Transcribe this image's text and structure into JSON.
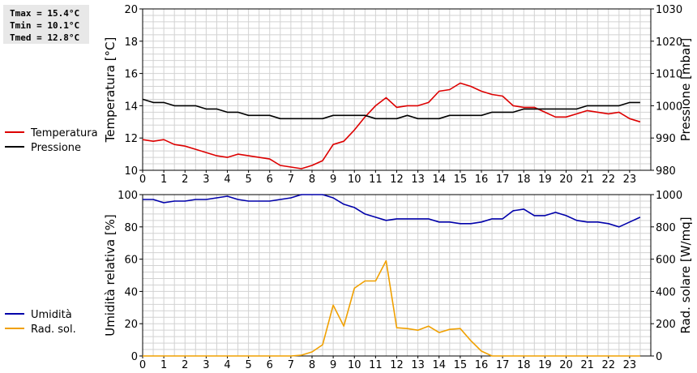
{
  "stats": {
    "tmax": "Tmax = 15.4°C",
    "tmin": "Tmin = 10.1°C",
    "tmed": "Tmed = 12.8°C"
  },
  "colors": {
    "temperature": "#dd0000",
    "pressure": "#000000",
    "humidity": "#0000aa",
    "solar": "#f0a000",
    "grid": "#d2d2d2"
  },
  "chart_data": [
    {
      "type": "line",
      "ylabel": "Temperatura [°C]",
      "y2label": "Pressione [mbar]",
      "xlim": [
        0,
        24
      ],
      "ylim": [
        10,
        20
      ],
      "y2lim": [
        980,
        1030
      ],
      "xticks": [
        "0",
        "1",
        "2",
        "3",
        "4",
        "5",
        "6",
        "7",
        "8",
        "9",
        "10",
        "11",
        "12",
        "13",
        "14",
        "15",
        "16",
        "17",
        "18",
        "19",
        "20",
        "21",
        "22",
        "23"
      ],
      "yticks": [
        "10",
        "12",
        "14",
        "16",
        "18",
        "20"
      ],
      "y2ticks": [
        "980",
        "990",
        "1000",
        "1010",
        "1020",
        "1030"
      ],
      "grid": true,
      "legend_position": "left",
      "series": [
        {
          "name": "Temperatura",
          "axis": "left",
          "x": [
            0,
            0.5,
            1,
            1.5,
            2,
            2.5,
            3,
            3.5,
            4,
            4.5,
            5,
            5.5,
            6,
            6.5,
            7,
            7.5,
            8,
            8.5,
            9,
            9.5,
            10,
            10.5,
            11,
            11.5,
            12,
            12.5,
            13,
            13.5,
            14,
            14.5,
            15,
            15.5,
            16,
            16.5,
            17,
            17.5,
            18,
            18.5,
            19,
            19.5,
            20,
            20.5,
            21,
            21.5,
            22,
            22.5,
            23,
            23.5
          ],
          "y": [
            11.9,
            11.8,
            11.9,
            11.6,
            11.5,
            11.3,
            11.1,
            10.9,
            10.8,
            11.0,
            10.9,
            10.8,
            10.7,
            10.3,
            10.2,
            10.1,
            10.3,
            10.6,
            11.6,
            11.8,
            12.5,
            13.3,
            14.0,
            14.5,
            13.9,
            14.0,
            14.0,
            14.2,
            14.9,
            15.0,
            15.4,
            15.2,
            14.9,
            14.7,
            14.6,
            14.0,
            13.9,
            13.9,
            13.6,
            13.3,
            13.3,
            13.5,
            13.7,
            13.6,
            13.5,
            13.6,
            13.2,
            13.0
          ]
        },
        {
          "name": "Pressione",
          "axis": "right",
          "x": [
            0,
            0.5,
            1,
            1.5,
            2,
            2.5,
            3,
            3.5,
            4,
            4.5,
            5,
            5.5,
            6,
            6.5,
            7,
            7.5,
            8,
            8.5,
            9,
            9.5,
            10,
            10.5,
            11,
            11.5,
            12,
            12.5,
            13,
            13.5,
            14,
            14.5,
            15,
            15.5,
            16,
            16.5,
            17,
            17.5,
            18,
            18.5,
            19,
            19.5,
            20,
            20.5,
            21,
            21.5,
            22,
            22.5,
            23,
            23.5
          ],
          "y": [
            1002,
            1001,
            1001,
            1000,
            1000,
            1000,
            999,
            999,
            998,
            998,
            997,
            997,
            997,
            996,
            996,
            996,
            996,
            996,
            997,
            997,
            997,
            997,
            996,
            996,
            996,
            997,
            996,
            996,
            996,
            997,
            997,
            997,
            997,
            998,
            998,
            998,
            999,
            999,
            999,
            999,
            999,
            999,
            1000,
            1000,
            1000,
            1000,
            1001,
            1001
          ]
        }
      ]
    },
    {
      "type": "line",
      "ylabel": "Umidità relativa [%]",
      "y2label": "Rad. solare [W/mq]",
      "xlim": [
        0,
        24
      ],
      "ylim": [
        0,
        100
      ],
      "y2lim": [
        0,
        1000
      ],
      "xticks": [
        "0",
        "1",
        "2",
        "3",
        "4",
        "5",
        "6",
        "7",
        "8",
        "9",
        "10",
        "11",
        "12",
        "13",
        "14",
        "15",
        "16",
        "17",
        "18",
        "19",
        "20",
        "21",
        "22",
        "23"
      ],
      "yticks": [
        "0",
        "20",
        "40",
        "60",
        "80",
        "100"
      ],
      "y2ticks": [
        "0",
        "200",
        "400",
        "600",
        "800",
        "1000"
      ],
      "grid": true,
      "legend_position": "left",
      "series": [
        {
          "name": "Umidità",
          "axis": "left",
          "x": [
            0,
            0.5,
            1,
            1.5,
            2,
            2.5,
            3,
            3.5,
            4,
            4.5,
            5,
            5.5,
            6,
            6.5,
            7,
            7.5,
            8,
            8.5,
            9,
            9.5,
            10,
            10.5,
            11,
            11.5,
            12,
            12.5,
            13,
            13.5,
            14,
            14.5,
            15,
            15.5,
            16,
            16.5,
            17,
            17.5,
            18,
            18.5,
            19,
            19.5,
            20,
            20.5,
            21,
            21.5,
            22,
            22.5,
            23,
            23.5
          ],
          "y": [
            97,
            97,
            95,
            96,
            96,
            97,
            97,
            98,
            99,
            97,
            96,
            96,
            96,
            97,
            98,
            100,
            100,
            100,
            98,
            94,
            92,
            88,
            86,
            84,
            85,
            85,
            85,
            85,
            83,
            83,
            82,
            82,
            83,
            85,
            85,
            90,
            91,
            87,
            87,
            89,
            87,
            84,
            83,
            83,
            82,
            80,
            83,
            86
          ]
        },
        {
          "name": "Rad. sol.",
          "axis": "right",
          "x": [
            0,
            0.5,
            1,
            1.5,
            2,
            2.5,
            3,
            3.5,
            4,
            4.5,
            5,
            5.5,
            6,
            6.5,
            7,
            7.5,
            8,
            8.5,
            9,
            9.5,
            10,
            10.5,
            11,
            11.5,
            12,
            12.5,
            13,
            13.5,
            14,
            14.5,
            15,
            15.5,
            16,
            16.5,
            17,
            17.5,
            18,
            18.5,
            19,
            19.5,
            20,
            20.5,
            21,
            21.5,
            22,
            22.5,
            23,
            23.5
          ],
          "y": [
            0,
            0,
            0,
            0,
            0,
            0,
            0,
            0,
            0,
            0,
            0,
            0,
            0,
            0,
            0,
            5,
            25,
            70,
            315,
            185,
            420,
            465,
            465,
            590,
            175,
            170,
            160,
            185,
            145,
            165,
            170,
            95,
            30,
            0,
            0,
            0,
            0,
            0,
            0,
            0,
            0,
            0,
            0,
            0,
            0,
            0,
            0,
            0
          ]
        }
      ]
    }
  ]
}
